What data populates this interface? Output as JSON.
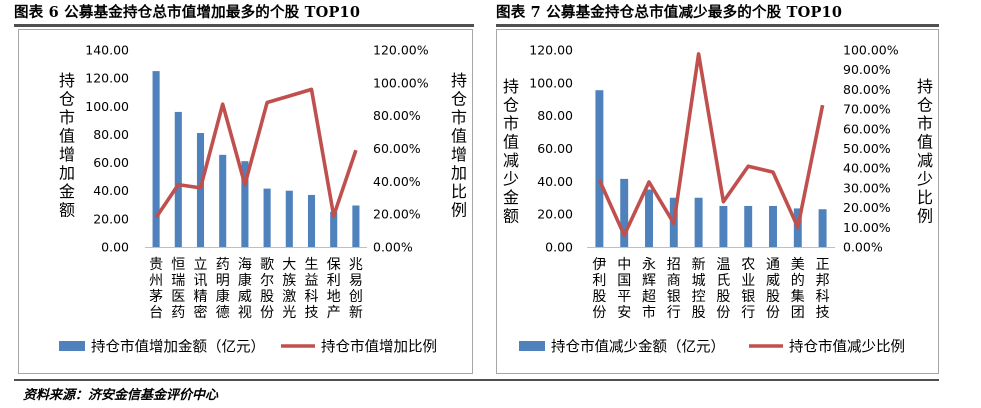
{
  "figure_left_title": "图表 6 公募基金持仓总市值增加最多的个股 TOP10",
  "figure_right_title": "图表 7 公募基金持仓总市值减少最多的个股 TOP10",
  "source": "资料来源：济安金信基金评价中心",
  "colors": {
    "bar": "#4f81bd",
    "line": "#c0504d",
    "axis": "#bfbfbf",
    "rule": "#4f4f4f"
  },
  "chart_data": [
    {
      "type": "bar",
      "title": "图表 6 公募基金持仓总市值增加最多的个股 TOP10",
      "categories": [
        "贵州茅台",
        "恒瑞医药",
        "立讯精密",
        "药明康德",
        "海康威视",
        "歌尔股份",
        "大族激光",
        "生益科技",
        "保利地产",
        "兆易创新"
      ],
      "ylabel": "持仓市值增加金额",
      "y2label": "持仓市值增加比例",
      "ylim": [
        0,
        140
      ],
      "y2lim": [
        0,
        1.2
      ],
      "yticks": [
        "0.00",
        "20.00",
        "40.00",
        "60.00",
        "80.00",
        "100.00",
        "120.00",
        "140.00"
      ],
      "y2ticks": [
        "0.00%",
        "20.00%",
        "40.00%",
        "60.00%",
        "80.00%",
        "100.00%",
        "120.00%"
      ],
      "series": [
        {
          "name": "持仓市值增加金额（亿元）",
          "type": "bar",
          "axis": "left",
          "values": [
            125,
            96,
            81,
            65.5,
            61,
            41.5,
            40,
            37,
            25,
            29.5
          ]
        },
        {
          "name": "持仓市值增加比例",
          "type": "line",
          "axis": "right",
          "values": [
            0.18,
            0.38,
            0.36,
            0.87,
            0.38,
            0.88,
            0.92,
            0.96,
            0.19,
            0.59
          ]
        }
      ],
      "legend": "bottom"
    },
    {
      "type": "bar",
      "title": "图表 7 公募基金持仓总市值减少最多的个股 TOP10",
      "categories": [
        "伊利股份",
        "中国平安",
        "永辉超市",
        "招商银行",
        "新城控股",
        "温氏股份",
        "农业银行",
        "通威股份",
        "美的集团",
        "正邦科技"
      ],
      "ylabel": "持仓市值减少金额",
      "y2label": "持仓市值减少比例",
      "ylim": [
        0,
        120
      ],
      "y2lim": [
        0,
        1.0
      ],
      "yticks": [
        "0.00",
        "20.00",
        "40.00",
        "60.00",
        "80.00",
        "100.00",
        "120.00"
      ],
      "y2ticks": [
        "0.00%",
        "10.00%",
        "20.00%",
        "30.00%",
        "40.00%",
        "50.00%",
        "60.00%",
        "70.00%",
        "80.00%",
        "90.00%",
        "100.00%"
      ],
      "series": [
        {
          "name": "持仓市值减少金额（亿元）",
          "type": "bar",
          "axis": "left",
          "values": [
            95.5,
            41.5,
            35,
            30,
            30,
            25,
            25,
            25,
            23.5,
            23
          ]
        },
        {
          "name": "持仓市值减少比例",
          "type": "line",
          "axis": "right",
          "values": [
            0.34,
            0.06,
            0.33,
            0.12,
            0.98,
            0.23,
            0.41,
            0.38,
            0.1,
            0.72
          ]
        }
      ],
      "legend": "bottom"
    }
  ]
}
